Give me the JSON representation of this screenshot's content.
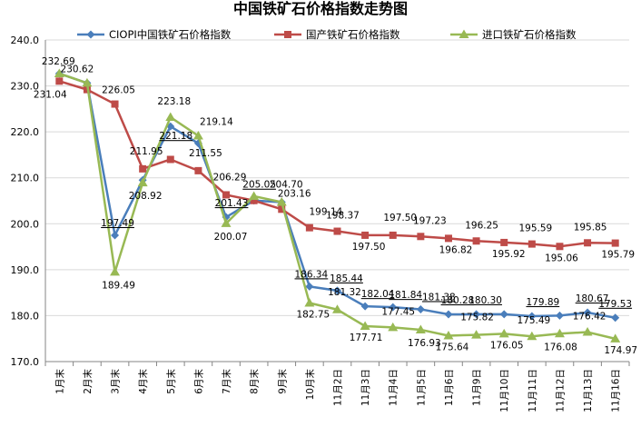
{
  "chart_data": {
    "type": "line",
    "title": "中国铁矿石价格指数走势图",
    "categories": [
      "1月末",
      "2月末",
      "3月末",
      "4月末",
      "5月末",
      "6月末",
      "7月末",
      "8月末",
      "9月末",
      "10月末",
      "11月2日",
      "11月3日",
      "11月4日",
      "11月5日",
      "11月6日",
      "11月9日",
      "11月10日",
      "11月11日",
      "11月12日",
      "11月13日",
      "11月16日"
    ],
    "ylim": [
      170,
      240
    ],
    "ytick_step": 10,
    "ytick_labels": [
      "170.0",
      "180.0",
      "190.0",
      "200.0",
      "210.0",
      "220.0",
      "230.0",
      "240.0"
    ],
    "grid": true,
    "legend_position": "top",
    "series": [
      {
        "name": "CIOPI中国铁矿石价格指数",
        "color": "#4a7ebb",
        "marker": "diamond",
        "values": [
          232.69,
          230.62,
          197.49,
          209.5,
          221.18,
          217.5,
          201.43,
          205.05,
          204.7,
          186.34,
          185.44,
          182.04,
          181.84,
          181.38,
          180.28,
          180.3,
          180.3,
          179.89,
          180.0,
          180.67,
          179.53
        ],
        "labels": {
          "2": "197.49",
          "4": "221.18",
          "6": "201.43",
          "7": "205.05",
          "9": "186.34",
          "10": "185.44",
          "11": "182.04",
          "12": "181.84",
          "13": "181.38",
          "14": "180.28",
          "15": "180.30",
          "17": "179.89",
          "19": "180.67",
          "20": "179.53"
        }
      },
      {
        "name": "国产铁矿石价格指数",
        "color": "#be4b48",
        "marker": "square",
        "values": [
          231.04,
          229.2,
          226.05,
          211.95,
          214.0,
          211.55,
          206.29,
          205.05,
          203.16,
          199.14,
          198.37,
          197.5,
          197.5,
          197.23,
          196.82,
          196.25,
          195.92,
          195.59,
          195.06,
          195.85,
          195.79
        ],
        "labels": {
          "0": "231.04",
          "2": "226.05",
          "3": "211.95",
          "5": "211.55",
          "6": "206.29",
          "8": "203.16",
          "9": "199.14",
          "10": "198.37",
          "11": "197.50",
          "12": "197.50",
          "13": "197.23",
          "14": "196.82",
          "15": "196.25",
          "16": "195.92",
          "17": "195.59",
          "18": "195.06",
          "19": "195.85",
          "20": "195.79"
        }
      },
      {
        "name": "进口铁矿石价格指数",
        "color": "#98b954",
        "marker": "triangle",
        "values": [
          232.69,
          230.62,
          189.49,
          208.92,
          223.18,
          219.14,
          200.07,
          206.0,
          204.7,
          182.75,
          181.32,
          177.71,
          177.45,
          176.93,
          175.64,
          175.82,
          176.05,
          175.49,
          176.08,
          176.42,
          174.97
        ],
        "labels": {
          "0": "232.69",
          "1": "230.62",
          "2": "189.49",
          "3": "208.92",
          "4": "223.18",
          "5": "219.14",
          "6": "200.07",
          "8": "204.70",
          "9": "182.75",
          "10": "181.32",
          "11": "177.71",
          "12": "177.45",
          "13": "176.93",
          "14": "175.64",
          "15": "175.82",
          "16": "176.05",
          "17": "175.49",
          "18": "176.08",
          "19": "176.42",
          "20": "174.97"
        }
      }
    ]
  }
}
